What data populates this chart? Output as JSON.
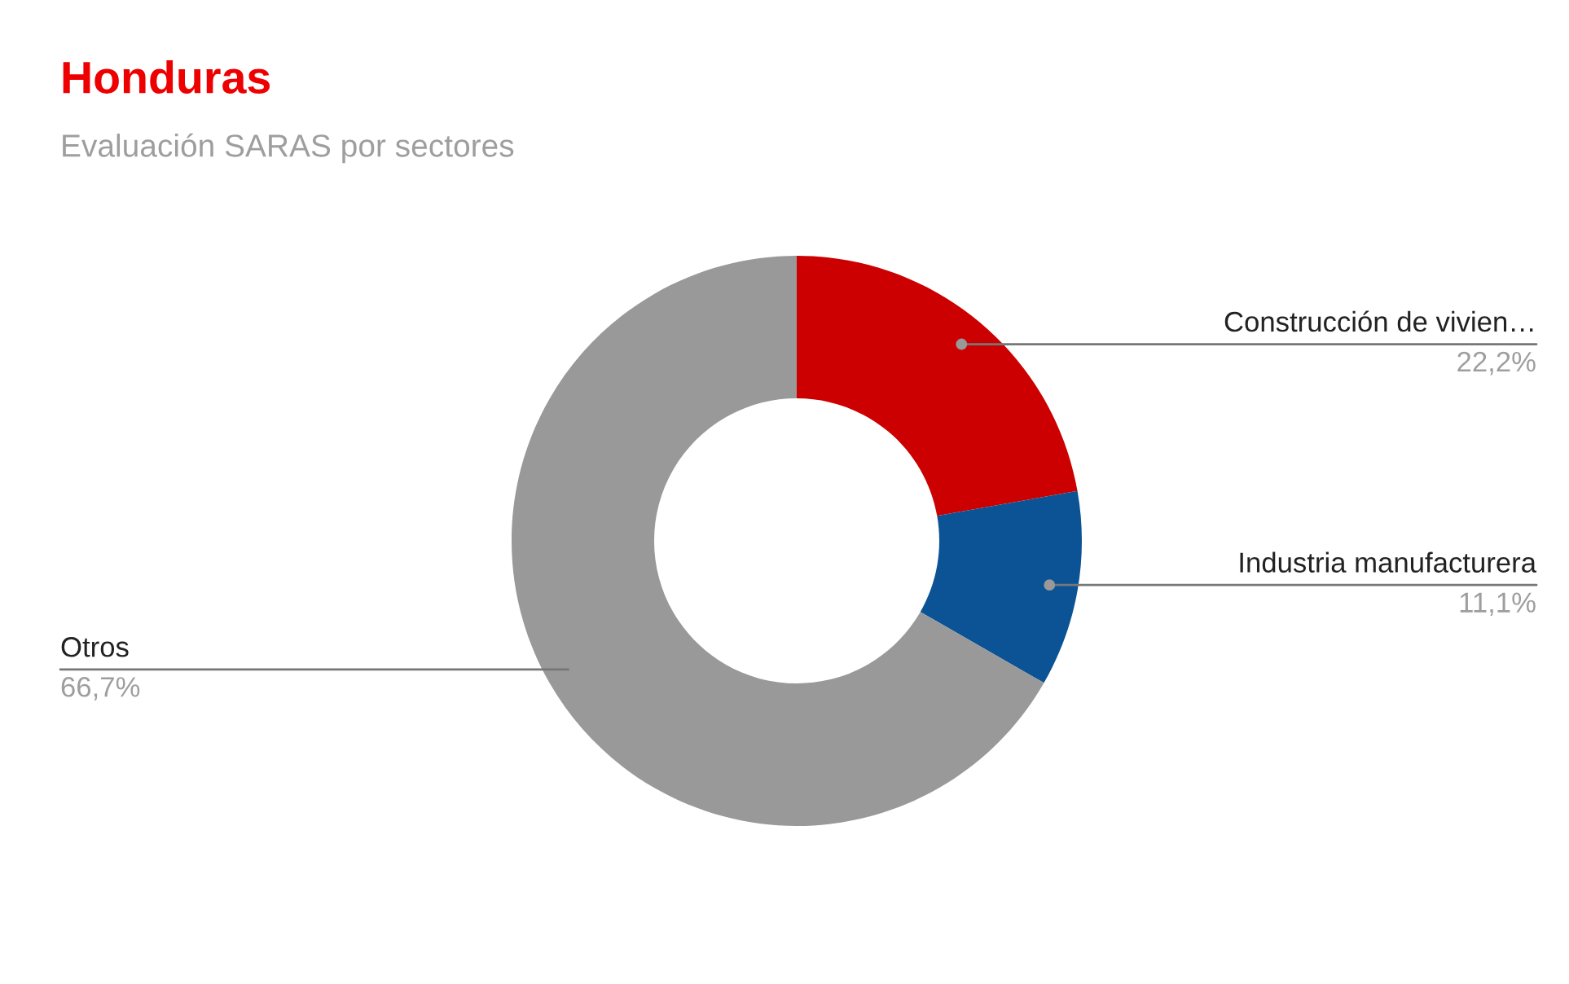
{
  "chart_data": {
    "type": "donut",
    "title": "Honduras",
    "subtitle": "Evaluación SARAS por sectores",
    "categories": [
      "Construcción de vivien…",
      "Industria manufacturera",
      "Otros"
    ],
    "values": [
      22.2,
      11.1,
      66.7
    ],
    "value_labels": [
      "22,2%",
      "11,1%",
      "66,7%"
    ],
    "colors": [
      "#cc0000",
      "#0b5394",
      "#999999"
    ],
    "legend": false
  }
}
